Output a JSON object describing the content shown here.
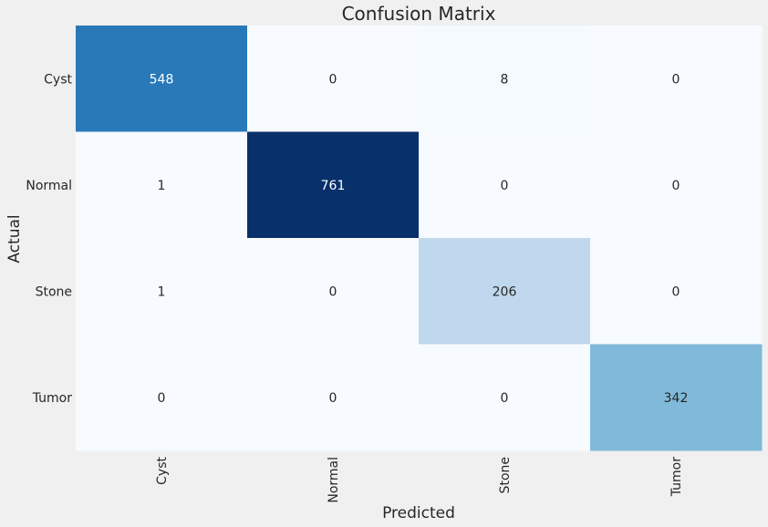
{
  "chart_data": {
    "type": "heatmap",
    "title": "Confusion Matrix",
    "xlabel": "Predicted",
    "ylabel": "Actual",
    "x_categories": [
      "Cyst",
      "Normal",
      "Stone",
      "Tumor"
    ],
    "y_categories": [
      "Cyst",
      "Normal",
      "Stone",
      "Tumor"
    ],
    "values": [
      [
        548,
        0,
        8,
        0
      ],
      [
        1,
        761,
        0,
        0
      ],
      [
        1,
        0,
        206,
        0
      ],
      [
        0,
        0,
        0,
        342
      ]
    ],
    "colormap": "Blues",
    "colorbar": false,
    "background_color": "#f0f0f0"
  }
}
